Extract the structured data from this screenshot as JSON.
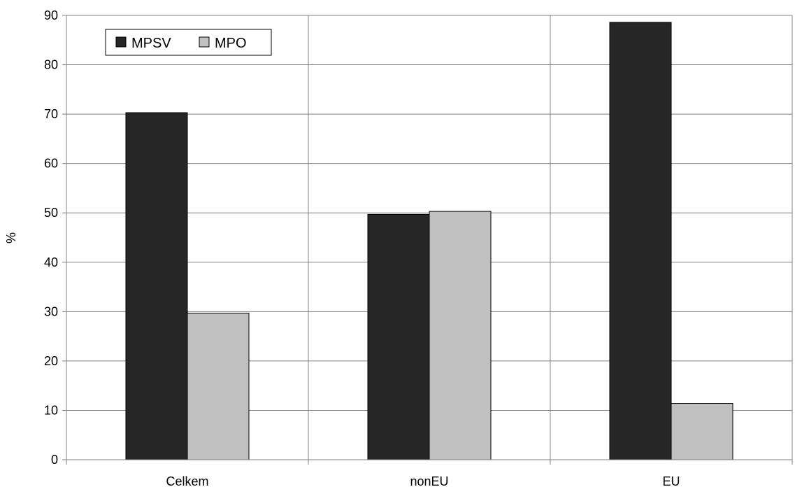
{
  "chart_data": {
    "type": "bar",
    "categories": [
      "Celkem",
      "nonEU",
      "EU"
    ],
    "series": [
      {
        "name": "MPSV",
        "values": [
          70.3,
          49.7,
          88.6
        ],
        "color": "#262626"
      },
      {
        "name": "MPO",
        "values": [
          29.7,
          50.3,
          11.4
        ],
        "color": "#c0c0c0"
      }
    ],
    "ylabel": "%",
    "ylim": [
      0,
      90
    ],
    "yticks": [
      0,
      10,
      20,
      30,
      40,
      50,
      60,
      70,
      80,
      90
    ],
    "grid": true,
    "legend": "top-left"
  }
}
